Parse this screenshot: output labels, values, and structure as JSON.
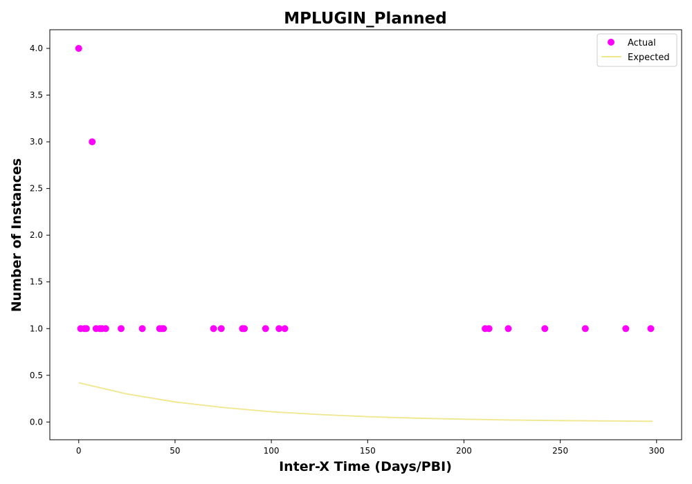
{
  "chart_data": {
    "type": "scatter",
    "title": "MPLUGIN_Planned",
    "xlabel": "Inter-X Time (Days/PBI)",
    "ylabel": "Number of Instances",
    "xlim": [
      -15,
      313
    ],
    "ylim": [
      -0.19,
      4.2
    ],
    "xticks": [
      0,
      50,
      100,
      150,
      200,
      250,
      300
    ],
    "xtick_labels": [
      "0",
      "50",
      "100",
      "150",
      "200",
      "250",
      "300"
    ],
    "yticks": [
      0.0,
      0.5,
      1.0,
      1.5,
      2.0,
      2.5,
      3.0,
      3.5,
      4.0
    ],
    "ytick_labels": [
      "0.0",
      "0.5",
      "1.0",
      "1.5",
      "2.0",
      "2.5",
      "3.0",
      "3.5",
      "4.0"
    ],
    "grid": false,
    "legend_position": "top-right",
    "series": [
      {
        "name": "Actual",
        "kind": "scatter",
        "color": "#ff00ff",
        "points": [
          {
            "x": 0,
            "y": 4
          },
          {
            "x": 7,
            "y": 3
          },
          {
            "x": 1,
            "y": 1
          },
          {
            "x": 3,
            "y": 1
          },
          {
            "x": 4,
            "y": 1
          },
          {
            "x": 9,
            "y": 1
          },
          {
            "x": 11,
            "y": 1
          },
          {
            "x": 12,
            "y": 1
          },
          {
            "x": 14,
            "y": 1
          },
          {
            "x": 22,
            "y": 1
          },
          {
            "x": 33,
            "y": 1
          },
          {
            "x": 42,
            "y": 1
          },
          {
            "x": 43,
            "y": 1
          },
          {
            "x": 44,
            "y": 1
          },
          {
            "x": 70,
            "y": 1
          },
          {
            "x": 74,
            "y": 1
          },
          {
            "x": 85,
            "y": 1
          },
          {
            "x": 86,
            "y": 1
          },
          {
            "x": 97,
            "y": 1
          },
          {
            "x": 104,
            "y": 1
          },
          {
            "x": 107,
            "y": 1
          },
          {
            "x": 211,
            "y": 1
          },
          {
            "x": 213,
            "y": 1
          },
          {
            "x": 223,
            "y": 1
          },
          {
            "x": 242,
            "y": 1
          },
          {
            "x": 263,
            "y": 1
          },
          {
            "x": 284,
            "y": 1
          },
          {
            "x": 297,
            "y": 1
          }
        ]
      },
      {
        "name": "Expected",
        "kind": "line",
        "color": "#f0e68c",
        "x": [
          0,
          25,
          50,
          75,
          100,
          125,
          150,
          175,
          200,
          225,
          250,
          275,
          298
        ],
        "y": [
          0.42,
          0.3,
          0.215,
          0.155,
          0.11,
          0.08,
          0.057,
          0.041,
          0.03,
          0.021,
          0.015,
          0.011,
          0.008
        ]
      }
    ]
  }
}
